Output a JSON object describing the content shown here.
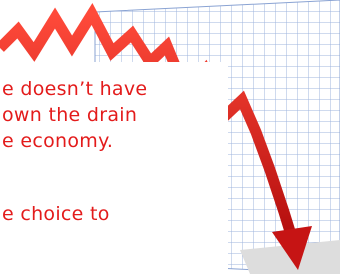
{
  "text": {
    "lines": [
      "e doesn’t have",
      "own the drain",
      "e economy.",
      "e choice to"
    ]
  }
}
